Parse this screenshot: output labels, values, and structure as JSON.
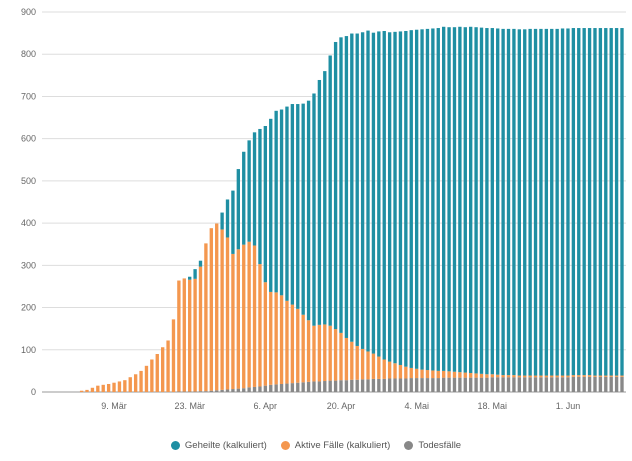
{
  "chart_data": {
    "type": "bar",
    "stacked": true,
    "title": "",
    "xlabel": "",
    "ylabel": "",
    "ylim": [
      0,
      900
    ],
    "yticks": [
      0,
      100,
      200,
      300,
      400,
      500,
      600,
      700,
      800,
      900
    ],
    "x_tick_labels": [
      "9. Mär",
      "23. Mär",
      "6. Apr",
      "20. Apr",
      "4. Mai",
      "18. Mai",
      "1. Jun"
    ],
    "x_tick_indices": [
      10,
      24,
      38,
      52,
      66,
      80,
      94
    ],
    "grid": true,
    "legend_position": "bottom",
    "categories_count": 105,
    "series": [
      {
        "name": "Todesfälle",
        "color": "#888888",
        "values": [
          0,
          0,
          0,
          0,
          0,
          0,
          0,
          0,
          0,
          0,
          0,
          0,
          0,
          0,
          0,
          0,
          0,
          0,
          0,
          0,
          0,
          0,
          1,
          1,
          1,
          1,
          2,
          2,
          3,
          4,
          5,
          6,
          7,
          8,
          9,
          11,
          12,
          13,
          15,
          17,
          18,
          19,
          20,
          21,
          22,
          23,
          24,
          25,
          25,
          26,
          27,
          27,
          28,
          28,
          29,
          29,
          30,
          30,
          31,
          31,
          31,
          32,
          32,
          32,
          32,
          33,
          33,
          33,
          33,
          33,
          33,
          34,
          34,
          34,
          34,
          34,
          34,
          34,
          34,
          34,
          35,
          35,
          35,
          35,
          35,
          35,
          35,
          35,
          35,
          35,
          35,
          35,
          35,
          35,
          35,
          36,
          36,
          36,
          36,
          36,
          36,
          36,
          36,
          36,
          36
        ]
      },
      {
        "name": "Aktive Fälle (kalkuliert)",
        "color": "#f4974e",
        "values": [
          0,
          0,
          0,
          0,
          3,
          5,
          10,
          15,
          17,
          19,
          22,
          25,
          28,
          35,
          42,
          50,
          62,
          77,
          90,
          106,
          122,
          172,
          263,
          268,
          265,
          267,
          295,
          350,
          385,
          395,
          380,
          360,
          320,
          330,
          340,
          345,
          335,
          290,
          245,
          220,
          218,
          210,
          196,
          186,
          175,
          160,
          146,
          132,
          134,
          134,
          130,
          122,
          112,
          100,
          90,
          80,
          72,
          66,
          60,
          53,
          46,
          40,
          36,
          32,
          28,
          24,
          22,
          20,
          19,
          18,
          17,
          16,
          15,
          14,
          13,
          12,
          11,
          10,
          9,
          8,
          7,
          6,
          5,
          5,
          5,
          4,
          4,
          4,
          4,
          4,
          4,
          4,
          4,
          4,
          4,
          4,
          4,
          4,
          4,
          3,
          3,
          3,
          3,
          3,
          3
        ]
      },
      {
        "name": "Geheilte (kalkuliert)",
        "color": "#1f8fa3",
        "values": [
          0,
          0,
          0,
          0,
          0,
          0,
          0,
          0,
          0,
          0,
          0,
          0,
          0,
          0,
          0,
          0,
          0,
          0,
          0,
          0,
          0,
          0,
          0,
          0,
          7,
          23,
          14,
          0,
          0,
          0,
          40,
          90,
          150,
          190,
          220,
          240,
          268,
          320,
          370,
          410,
          430,
          440,
          460,
          475,
          485,
          500,
          520,
          550,
          580,
          600,
          640,
          680,
          700,
          715,
          730,
          740,
          750,
          760,
          760,
          770,
          778,
          780,
          785,
          790,
          795,
          800,
          803,
          806,
          808,
          810,
          812,
          815,
          815,
          816,
          818,
          818,
          820,
          820,
          820,
          820,
          820,
          820,
          820,
          820,
          820,
          820,
          820,
          821,
          821,
          821,
          821,
          821,
          821,
          822,
          822,
          822,
          822,
          822,
          822,
          823,
          823,
          823,
          823,
          823,
          823
        ]
      }
    ]
  },
  "legend": {
    "items": [
      {
        "label": "Geheilte (kalkuliert)",
        "color": "#1f8fa3"
      },
      {
        "label": "Aktive Fälle (kalkuliert)",
        "color": "#f4974e"
      },
      {
        "label": "Todesfälle",
        "color": "#888888"
      }
    ]
  }
}
